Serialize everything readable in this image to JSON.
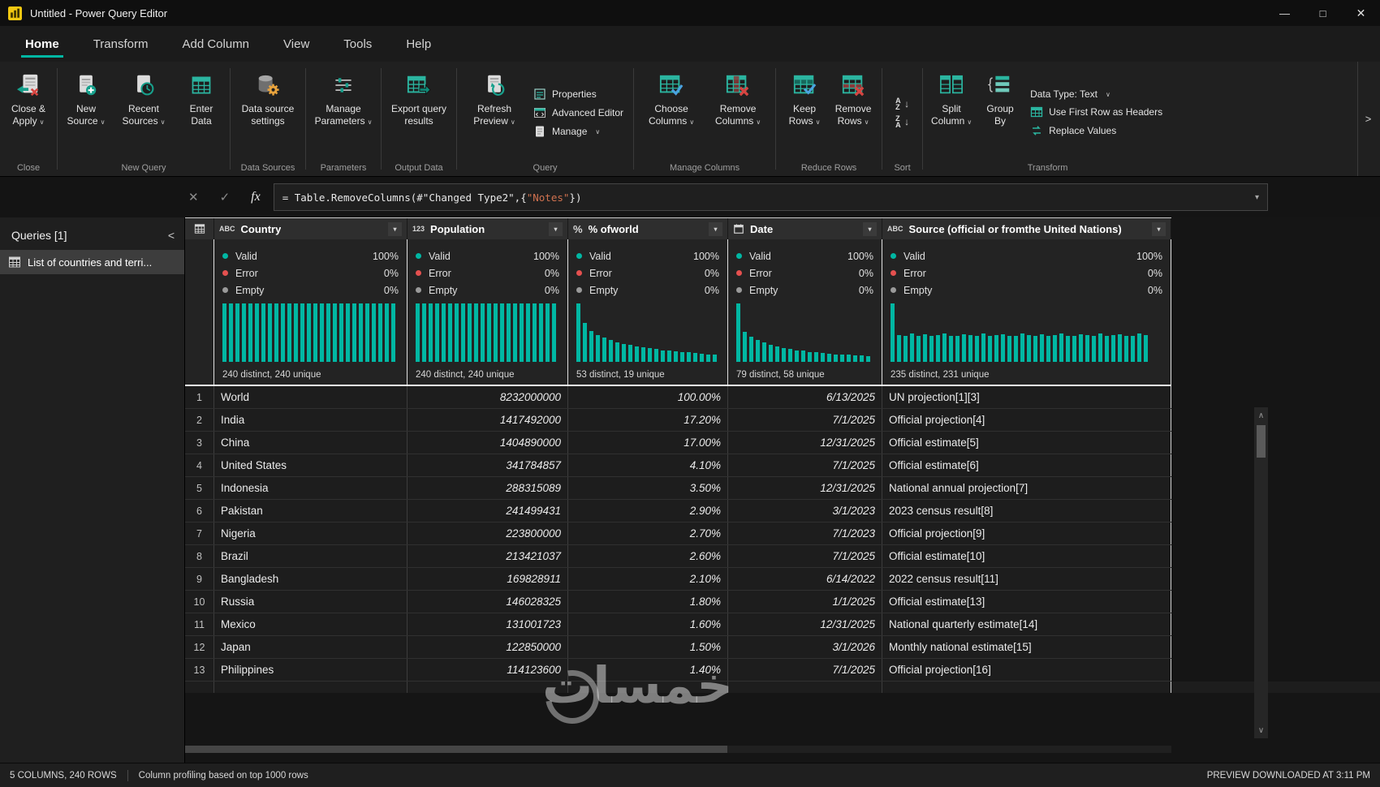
{
  "window": {
    "title": "Untitled - Power Query Editor"
  },
  "icons": {
    "dropdown": "∨",
    "minimize": "—",
    "maximize": "□",
    "close": "✕",
    "cancel": "✕",
    "check": "✓",
    "fx": "fx",
    "collapse": "<",
    "expand": ">",
    "filter": "▾",
    "scroll_up": "∧",
    "scroll_down": "∨",
    "sort_az_letters": "AZ",
    "sort_za_letters": "ZA",
    "arrow_down": "↓"
  },
  "tabs": [
    {
      "label": "Home",
      "active": true
    },
    {
      "label": "Transform"
    },
    {
      "label": "Add Column"
    },
    {
      "label": "View"
    },
    {
      "label": "Tools"
    },
    {
      "label": "Help"
    }
  ],
  "ribbon": {
    "buttons": {
      "close_apply": "Close & Apply",
      "new_source": "New Source",
      "recent_sources": "Recent Sources",
      "enter_data": "Enter Data",
      "data_source_settings": "Data source settings",
      "manage_parameters": "Manage Parameters",
      "export_query_results": "Export query results",
      "refresh_preview": "Refresh Preview",
      "properties": "Properties",
      "advanced_editor": "Advanced Editor",
      "manage": "Manage",
      "choose_columns": "Choose Columns",
      "remove_columns": "Remove Columns",
      "keep_rows": "Keep Rows",
      "remove_rows": "Remove Rows",
      "split_column": "Split Column",
      "group_by": "Group By",
      "data_type": "Data Type: Text",
      "use_first_row": "Use First Row as Headers",
      "replace_values": "Replace Values"
    },
    "group_labels": {
      "close": "Close",
      "new_query": "New Query",
      "data_sources": "Data Sources",
      "parameters": "Parameters",
      "output_data": "Output Data",
      "query": "Query",
      "manage_columns": "Manage Columns",
      "reduce_rows": "Reduce Rows",
      "sort": "Sort",
      "transform": "Transform"
    }
  },
  "formula_bar": {
    "pre": "= Table.RemoveColumns(#\"Changed Type2\",{",
    "str": "\"Notes\"",
    "post": "})"
  },
  "sidebar": {
    "header": "Queries [1]",
    "items": [
      {
        "label": "List of countries and terri..."
      }
    ]
  },
  "grid": {
    "quality_labels": {
      "valid": "Valid",
      "error": "Error",
      "empty": "Empty"
    },
    "columns": [
      {
        "type_glyph": "ABC",
        "label": "Country",
        "valid": "100%",
        "error": "0%",
        "empty": "0%",
        "distinct": "240 distinct, 240 unique",
        "bars": [
          1,
          1,
          1,
          1,
          1,
          1,
          1,
          1,
          1,
          1,
          1,
          1,
          1,
          1,
          1,
          1,
          1,
          1,
          1,
          1,
          1,
          1,
          1,
          1,
          1,
          1,
          1
        ]
      },
      {
        "type_glyph": "123",
        "label": "Population",
        "valid": "100%",
        "error": "0%",
        "empty": "0%",
        "distinct": "240 distinct, 240 unique",
        "bars": [
          1,
          1,
          1,
          1,
          1,
          1,
          1,
          1,
          1,
          1,
          1,
          1,
          1,
          1,
          1,
          1,
          1,
          1,
          1,
          1,
          1,
          1
        ]
      },
      {
        "type_glyph": "%",
        "label": "% ofworld",
        "valid": "100%",
        "error": "0%",
        "empty": "0%",
        "distinct": "53 distinct, 19 unique",
        "bars": [
          1,
          0.66,
          0.53,
          0.46,
          0.41,
          0.37,
          0.34,
          0.31,
          0.29,
          0.27,
          0.25,
          0.23,
          0.22,
          0.2,
          0.19,
          0.18,
          0.17,
          0.16,
          0.15,
          0.14,
          0.13,
          0.12
        ]
      },
      {
        "type_glyph": "",
        "label": "Date",
        "valid": "100%",
        "error": "0%",
        "empty": "0%",
        "distinct": "79 distinct, 58 unique",
        "bars": [
          1,
          0.52,
          0.43,
          0.37,
          0.33,
          0.29,
          0.26,
          0.24,
          0.22,
          0.2,
          0.19,
          0.17,
          0.16,
          0.15,
          0.14,
          0.13,
          0.13,
          0.12,
          0.11,
          0.11,
          0.1
        ]
      },
      {
        "type_glyph": "ABC",
        "label": "Source (official or fromthe United Nations)",
        "valid": "100%",
        "error": "0%",
        "empty": "0%",
        "distinct": "235 distinct, 231 unique",
        "bars": [
          1,
          0.46,
          0.44,
          0.48,
          0.45,
          0.47,
          0.44,
          0.46,
          0.48,
          0.45,
          0.44,
          0.47,
          0.46,
          0.45,
          0.48,
          0.44,
          0.46,
          0.47,
          0.45,
          0.44,
          0.48,
          0.46,
          0.45,
          0.47,
          0.44,
          0.46,
          0.48,
          0.45,
          0.44,
          0.47,
          0.46,
          0.45,
          0.48,
          0.44,
          0.46,
          0.47,
          0.45,
          0.44,
          0.48,
          0.46
        ]
      }
    ],
    "rows": [
      {
        "n": "1",
        "cells": [
          "World",
          "8232000000",
          "100.00%",
          "6/13/2025",
          "UN projection[1][3]"
        ]
      },
      {
        "n": "2",
        "cells": [
          "India",
          "1417492000",
          "17.20%",
          "7/1/2025",
          "Official projection[4]"
        ]
      },
      {
        "n": "3",
        "cells": [
          "China",
          "1404890000",
          "17.00%",
          "12/31/2025",
          "Official estimate[5]"
        ]
      },
      {
        "n": "4",
        "cells": [
          "United States",
          "341784857",
          "4.10%",
          "7/1/2025",
          "Official estimate[6]"
        ]
      },
      {
        "n": "5",
        "cells": [
          "Indonesia",
          "288315089",
          "3.50%",
          "12/31/2025",
          "National annual projection[7]"
        ]
      },
      {
        "n": "6",
        "cells": [
          "Pakistan",
          "241499431",
          "2.90%",
          "3/1/2023",
          "2023 census result[8]"
        ]
      },
      {
        "n": "7",
        "cells": [
          "Nigeria",
          "223800000",
          "2.70%",
          "7/1/2023",
          "Official projection[9]"
        ]
      },
      {
        "n": "8",
        "cells": [
          "Brazil",
          "213421037",
          "2.60%",
          "7/1/2025",
          "Official estimate[10]"
        ]
      },
      {
        "n": "9",
        "cells": [
          "Bangladesh",
          "169828911",
          "2.10%",
          "6/14/2022",
          "2022 census result[11]"
        ]
      },
      {
        "n": "10",
        "cells": [
          "Russia",
          "146028325",
          "1.80%",
          "1/1/2025",
          "Official estimate[13]"
        ]
      },
      {
        "n": "11",
        "cells": [
          "Mexico",
          "131001723",
          "1.60%",
          "12/31/2025",
          "National quarterly estimate[14]"
        ]
      },
      {
        "n": "12",
        "cells": [
          "Japan",
          "122850000",
          "1.50%",
          "3/1/2026",
          "Monthly national estimate[15]"
        ]
      },
      {
        "n": "13",
        "cells": [
          "Philippines",
          "114123600",
          "1.40%",
          "7/1/2025",
          "Official projection[16]"
        ]
      }
    ]
  },
  "status_bar": {
    "columns_rows": "5 COLUMNS, 240 ROWS",
    "profiling_note": "Column profiling based on top 1000 rows",
    "preview": "PREVIEW DOWNLOADED AT 3:11 PM"
  },
  "watermark": {
    "text": "خمسات"
  },
  "colors": {
    "accent": "#00b7a3",
    "error": "#e4504f",
    "empty_dot": "#9a9a9a",
    "histogram": "#00b7a3",
    "string": "#d0714f"
  }
}
